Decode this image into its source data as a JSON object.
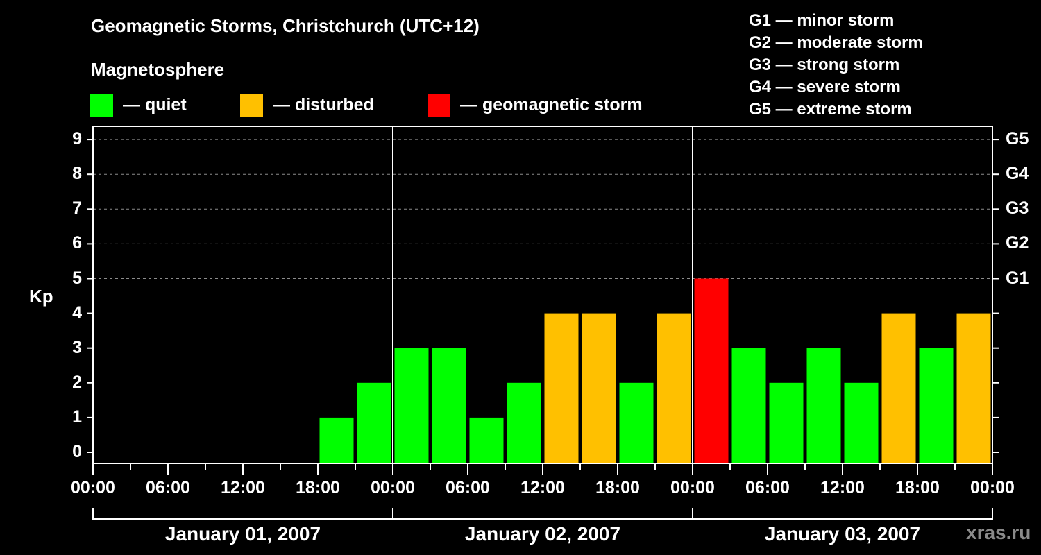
{
  "header": {
    "title": "Geomagnetic Storms, Christchurch (UTC+12)",
    "subtitle": "Magnetosphere"
  },
  "legend": [
    {
      "label": "— quiet",
      "color": "#00ff00"
    },
    {
      "label": "— disturbed",
      "color": "#ffc000"
    },
    {
      "label": "— geomagnetic storm",
      "color": "#ff0000"
    }
  ],
  "g_legend": [
    "G1 — minor storm",
    "G2 — moderate storm",
    "G3 — strong storm",
    "G4 — severe storm",
    "G5 — extreme storm"
  ],
  "watermark": "xras.ru",
  "chart_data": {
    "type": "bar",
    "title": "Geomagnetic Storms, Christchurch (UTC+12)",
    "subtitle": "Magnetosphere",
    "ylabel": "Kp",
    "xlabel": "",
    "ylim": [
      0,
      9
    ],
    "yticks": [
      "0",
      "1",
      "2",
      "3",
      "4",
      "5",
      "6",
      "7",
      "8",
      "9"
    ],
    "right_axis_labels": [
      {
        "kp": 5,
        "label": "G1"
      },
      {
        "kp": 6,
        "label": "G2"
      },
      {
        "kp": 7,
        "label": "G3"
      },
      {
        "kp": 8,
        "label": "G4"
      },
      {
        "kp": 9,
        "label": "G5"
      }
    ],
    "grid": "dashed horizontal at Kp 5-9",
    "xticks": [
      "00:00",
      "06:00",
      "12:00",
      "18:00",
      "00:00",
      "06:00",
      "12:00",
      "18:00",
      "00:00",
      "06:00",
      "12:00",
      "18:00",
      "00:00"
    ],
    "days": [
      "January 01, 2007",
      "January 02, 2007",
      "January 03, 2007"
    ],
    "interval_hours": 3,
    "categories": [
      "01 00:00",
      "01 03:00",
      "01 06:00",
      "01 09:00",
      "01 12:00",
      "01 15:00",
      "01 18:00",
      "01 21:00",
      "02 00:00",
      "02 03:00",
      "02 06:00",
      "02 09:00",
      "02 12:00",
      "02 15:00",
      "02 18:00",
      "02 21:00",
      "03 00:00",
      "03 03:00",
      "03 06:00",
      "03 09:00",
      "03 12:00",
      "03 15:00",
      "03 18:00",
      "03 21:00"
    ],
    "values": [
      null,
      null,
      null,
      null,
      null,
      null,
      1,
      2,
      3,
      3,
      1,
      2,
      4,
      4,
      2,
      4,
      5,
      3,
      2,
      3,
      2,
      4,
      3,
      4
    ],
    "color_rule": {
      "quiet": "Kp<=3 #00ff00",
      "disturbed": "Kp=4 #ffc000",
      "storm": "Kp>=5 #ff0000"
    },
    "legend_position": "top"
  }
}
